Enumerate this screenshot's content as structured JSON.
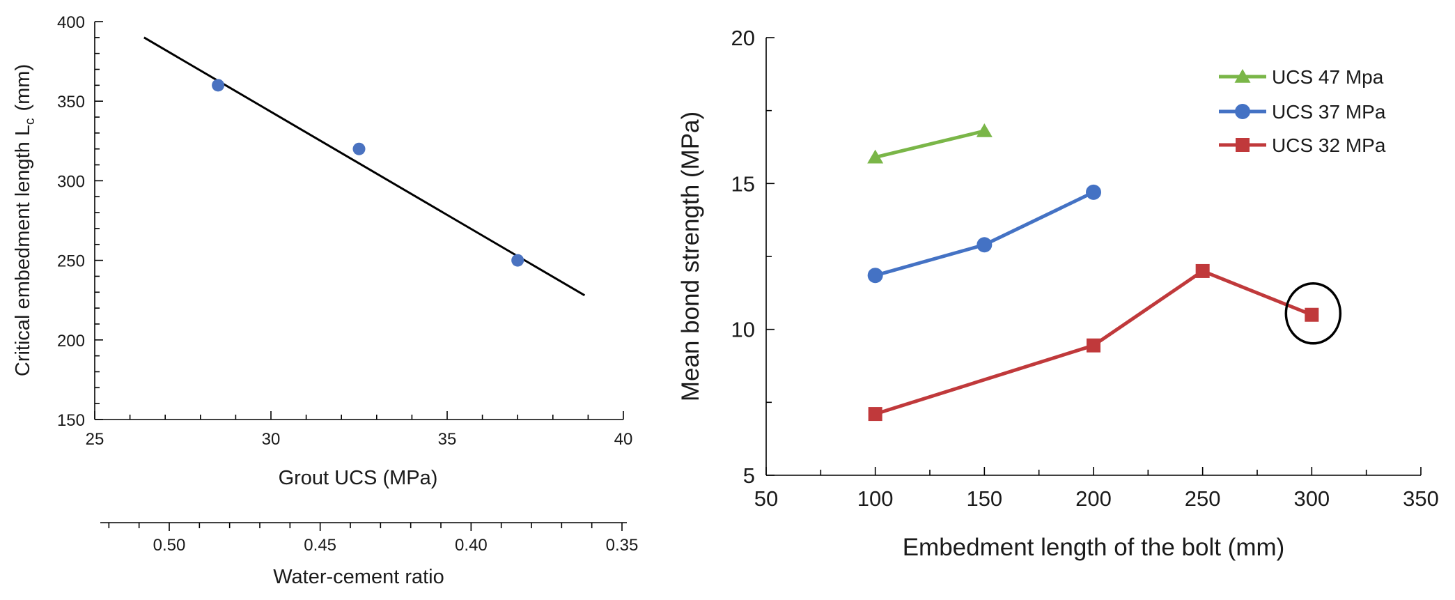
{
  "chart_data": [
    {
      "type": "scatter",
      "title": "",
      "xlabel": "Grout UCS (MPa)",
      "ylabel_main": "Critical embedment length L",
      "ylabel_sub": "c",
      "ylabel_unit": "(mm)",
      "xlim": [
        25,
        40
      ],
      "ylim": [
        150,
        400
      ],
      "x_ticks": [
        25,
        30,
        35,
        40
      ],
      "x_minor_step": 1,
      "y_ticks": [
        150,
        200,
        250,
        300,
        350,
        400
      ],
      "y_minor_step": 10,
      "points": [
        {
          "x": 28.5,
          "y": 360
        },
        {
          "x": 32.5,
          "y": 320
        },
        {
          "x": 37.0,
          "y": 250
        }
      ],
      "point_color": "#4a72c0",
      "trendline": {
        "x": [
          26.4,
          38.9
        ],
        "y": [
          390,
          228
        ],
        "color": "#000000"
      },
      "secondary_axis": {
        "label": "Water-cement ratio",
        "ticks": [
          0.5,
          0.45,
          0.4,
          0.35
        ],
        "tick_labels": [
          "0.50",
          "0.45",
          "0.40",
          "0.35"
        ],
        "minor_ticks": [
          0.52,
          0.51,
          0.49,
          0.48,
          0.47,
          0.46,
          0.44,
          0.43,
          0.42,
          0.41,
          0.39,
          0.38,
          0.37,
          0.36
        ]
      }
    },
    {
      "type": "line",
      "title": "",
      "xlabel": "Embedment length of the bolt (mm)",
      "ylabel": "Mean bond strength (MPa)",
      "xlim": [
        50,
        350
      ],
      "ylim": [
        5,
        20
      ],
      "x_ticks": [
        50,
        100,
        150,
        200,
        250,
        300,
        350
      ],
      "y_ticks": [
        5,
        10,
        15,
        20
      ],
      "series": [
        {
          "name": "UCS 47 Mpa",
          "color": "#7ab648",
          "marker": "triangle",
          "x": [
            100,
            150
          ],
          "y": [
            15.9,
            16.8
          ]
        },
        {
          "name": "UCS 37 MPa",
          "color": "#4472c4",
          "marker": "circle",
          "x": [
            100,
            150,
            200
          ],
          "y": [
            11.85,
            12.9,
            14.7
          ]
        },
        {
          "name": "UCS 32 MPa",
          "color": "#c0393b",
          "marker": "square",
          "x": [
            100,
            200,
            250,
            300
          ],
          "y": [
            7.1,
            9.45,
            12.0,
            10.5
          ]
        }
      ],
      "highlight": {
        "x": 300,
        "y": 10.5,
        "shape": "ellipse"
      },
      "legend_position": "top-right"
    }
  ]
}
